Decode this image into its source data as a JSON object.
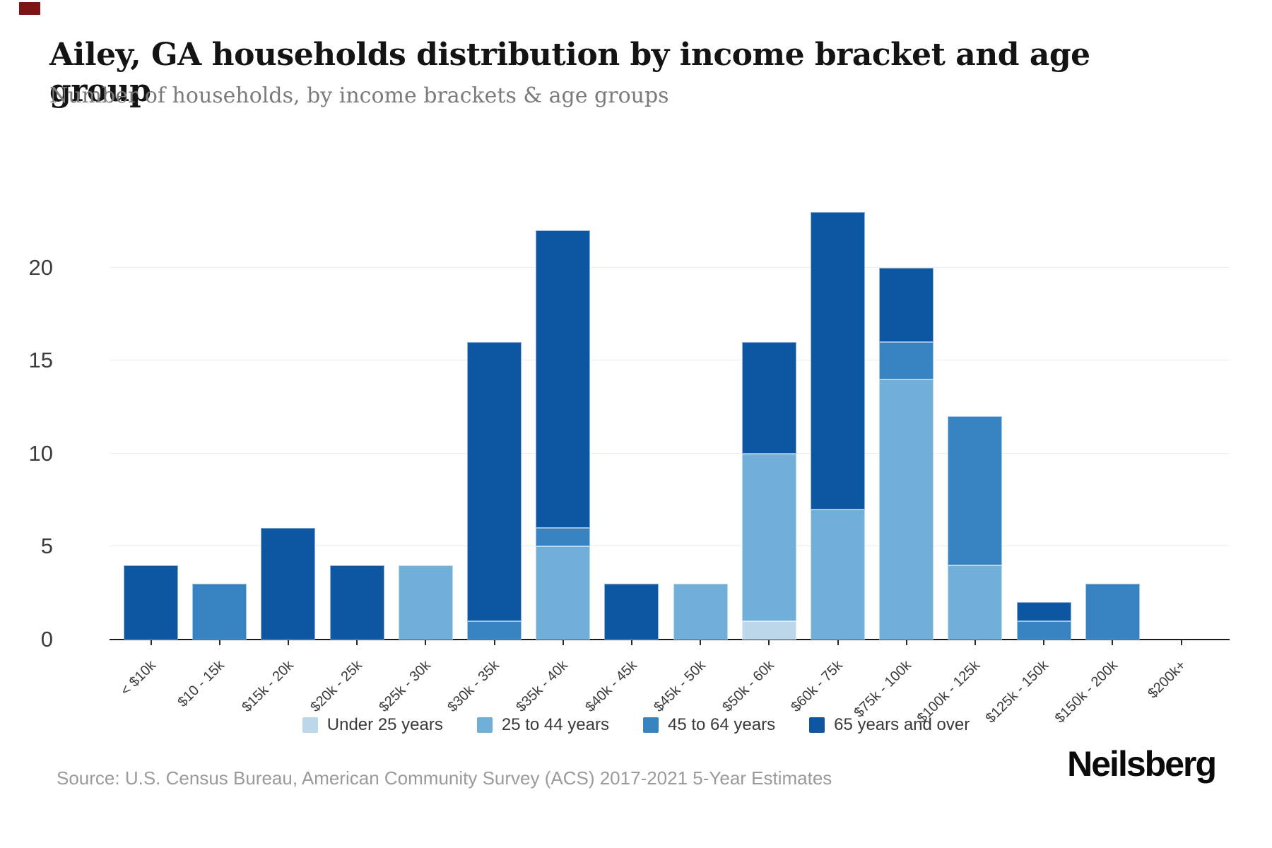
{
  "header": {
    "title": "Ailey, GA households distribution by income bracket and age group",
    "subtitle": "Number of households, by income brackets & age groups"
  },
  "chart_data": {
    "type": "bar",
    "stacked": true,
    "title": "Ailey, GA households distribution by income bracket and age group",
    "xlabel": "",
    "ylabel": "",
    "categories": [
      "< $10k",
      "$10 - 15k",
      "$15k - 20k",
      "$20k - 25k",
      "$25k - 30k",
      "$30k - 35k",
      "$35k - 40k",
      "$40k - 45k",
      "$45k - 50k",
      "$50k - 60k",
      "$60k - 75k",
      "$75k - 100k",
      "$100k - 125k",
      "$125k - 150k",
      "$150k - 200k",
      "$200k+"
    ],
    "series": [
      {
        "name": "Under 25 years",
        "color": "#bdd7ea",
        "values": [
          0,
          0,
          0,
          0,
          0,
          0,
          0,
          0,
          0,
          1,
          0,
          0,
          0,
          0,
          0,
          0
        ]
      },
      {
        "name": "25 to 44 years",
        "color": "#6fafd8",
        "values": [
          0,
          0,
          0,
          0,
          4,
          0,
          5,
          0,
          3,
          9,
          7,
          14,
          4,
          0,
          0,
          0
        ]
      },
      {
        "name": "45 to 64 years",
        "color": "#3783c2",
        "values": [
          0,
          3,
          0,
          0,
          0,
          1,
          1,
          0,
          0,
          0,
          0,
          2,
          8,
          1,
          3,
          0
        ]
      },
      {
        "name": "65 years and over",
        "color": "#0d56a2",
        "values": [
          4,
          0,
          6,
          4,
          0,
          15,
          16,
          3,
          0,
          6,
          16,
          4,
          0,
          1,
          0,
          0
        ]
      }
    ],
    "totals": [
      4,
      3,
      6,
      4,
      4,
      16,
      22,
      3,
      3,
      16,
      23,
      20,
      12,
      2,
      3,
      0
    ],
    "y_ticks": [
      0,
      5,
      10,
      15,
      20
    ],
    "ylim": [
      0,
      24.7
    ],
    "grid": true,
    "legend_position": "bottom"
  },
  "legend": {
    "items": [
      "Under 25 years",
      "25 to 44 years",
      "45 to 64 years",
      "65 years and over"
    ]
  },
  "footer": {
    "source": "Source: U.S. Census Bureau, American Community Survey (ACS) 2017-2021 5-Year Estimates",
    "logo": "Neilsberg"
  },
  "colors": {
    "accent_dark": "#0d56a2",
    "grid": "#ededed",
    "axis": "#1a1a1a",
    "artifact": "#7e1416"
  }
}
